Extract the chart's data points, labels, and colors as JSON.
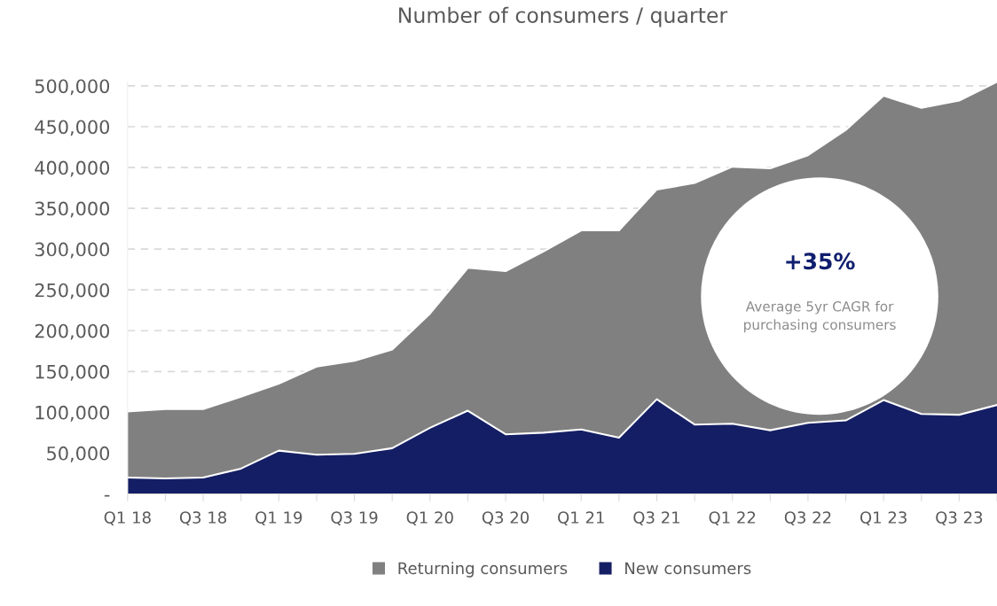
{
  "chart_data": {
    "type": "area",
    "stacked": true,
    "title": "Number of consumers / quarter",
    "categories": [
      "Q1 18",
      null,
      "Q3 18",
      null,
      "Q1 19",
      null,
      "Q3 19",
      null,
      "Q1 20",
      null,
      "Q3 20",
      null,
      "Q1 21",
      null,
      "Q3 21",
      null,
      "Q1 22",
      null,
      "Q3 22",
      null,
      "Q1 23",
      null,
      "Q3 23",
      null
    ],
    "series": [
      {
        "name": "New consumers",
        "color": "#141e64",
        "values": [
          20000,
          19000,
          20000,
          31000,
          53000,
          48000,
          49000,
          56000,
          81000,
          102000,
          73000,
          75000,
          79000,
          69000,
          116000,
          85000,
          86000,
          78000,
          87000,
          90000,
          115000,
          98000,
          97000,
          109000
        ]
      },
      {
        "name": "Returning consumers",
        "color": "#808080",
        "values": [
          81000,
          85000,
          84000,
          88000,
          82000,
          108000,
          114000,
          121000,
          140000,
          175000,
          200000,
          222000,
          244000,
          254000,
          257000,
          296000,
          315000,
          321000,
          328000,
          356000,
          373000,
          375000,
          385000,
          396000
        ]
      }
    ],
    "ylim": [
      0,
      505000
    ],
    "yticks": [
      {
        "value": 0,
        "label": "-"
      },
      {
        "value": 50000,
        "label": "50,000"
      },
      {
        "value": 100000,
        "label": "100,000"
      },
      {
        "value": 150000,
        "label": "150,000"
      },
      {
        "value": 200000,
        "label": "200,000"
      },
      {
        "value": 250000,
        "label": "250,000"
      },
      {
        "value": 300000,
        "label": "300,000"
      },
      {
        "value": 350000,
        "label": "350,000"
      },
      {
        "value": 400000,
        "label": "400,000"
      },
      {
        "value": 450000,
        "label": "450,000"
      },
      {
        "value": 500000,
        "label": "500,000"
      }
    ],
    "grid": "y",
    "legend": "bottom",
    "annotations": [
      "+35%",
      "Average 5yr CAGR for purchasing consumers"
    ]
  }
}
